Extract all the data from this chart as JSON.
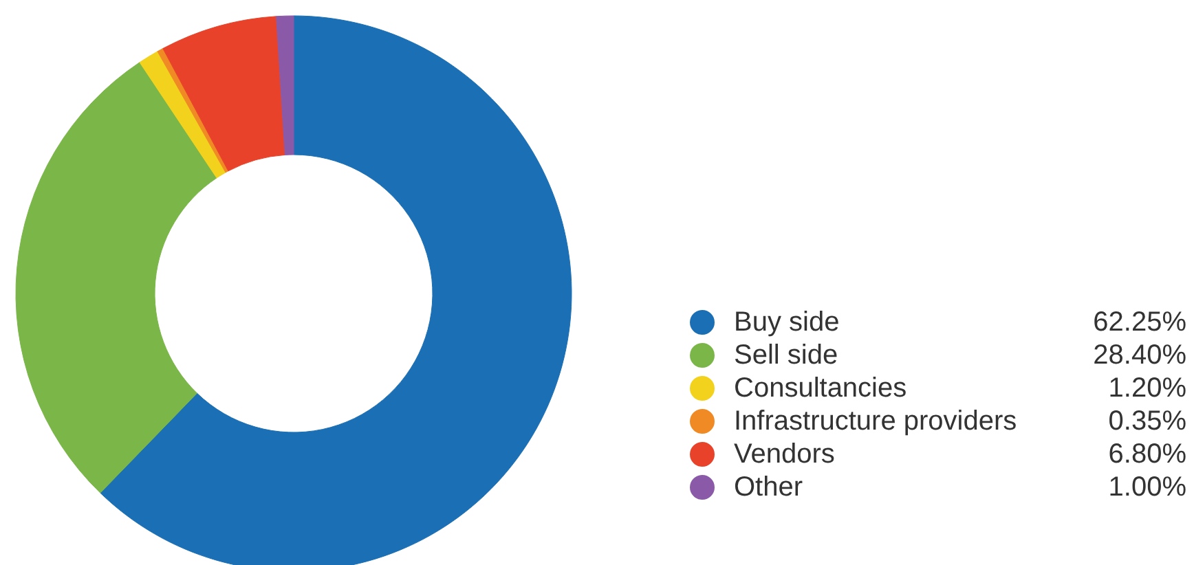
{
  "chart_data": {
    "type": "donut",
    "categories": [
      "Buy side",
      "Sell side",
      "Consultancies",
      "Infrastructure providers",
      "Vendors",
      "Other"
    ],
    "values": [
      62.25,
      28.4,
      1.2,
      0.35,
      6.8,
      1.0
    ],
    "value_labels": [
      "62.25%",
      "28.40%",
      "1.20%",
      "0.35%",
      "6.80%",
      "1.00%"
    ],
    "colors": [
      "#1a6fb5",
      "#7ab648",
      "#f2d21c",
      "#f08a24",
      "#e8432a",
      "#8a5aa8"
    ],
    "legend": "bottom right"
  }
}
